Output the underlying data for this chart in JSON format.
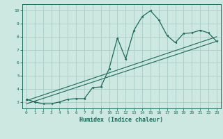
{
  "title": "",
  "xlabel": "Humidex (Indice chaleur)",
  "xlim": [
    -0.5,
    23.5
  ],
  "ylim": [
    2.5,
    10.5
  ],
  "xticks": [
    0,
    1,
    2,
    3,
    4,
    5,
    6,
    7,
    8,
    9,
    10,
    11,
    12,
    13,
    14,
    15,
    16,
    17,
    18,
    19,
    20,
    21,
    22,
    23
  ],
  "yticks": [
    3,
    4,
    5,
    6,
    7,
    8,
    9,
    10
  ],
  "bg_color": "#cce8e0",
  "grid_color": "#aaccc4",
  "line_color": "#1a6b5a",
  "curve_x": [
    0,
    1,
    2,
    3,
    4,
    5,
    6,
    7,
    8,
    9,
    10,
    11,
    12,
    13,
    14,
    15,
    16,
    17,
    18,
    19,
    20,
    21,
    22,
    23
  ],
  "curve_y": [
    3.2,
    3.0,
    2.85,
    2.85,
    3.0,
    3.2,
    3.25,
    3.25,
    4.1,
    4.15,
    5.55,
    7.9,
    6.3,
    8.5,
    9.55,
    10.0,
    9.3,
    8.1,
    7.55,
    8.25,
    8.3,
    8.5,
    8.3,
    7.65
  ],
  "line1_x": [
    0,
    23
  ],
  "line1_y": [
    2.85,
    7.65
  ],
  "line2_x": [
    0,
    23
  ],
  "line2_y": [
    3.1,
    8.0
  ]
}
